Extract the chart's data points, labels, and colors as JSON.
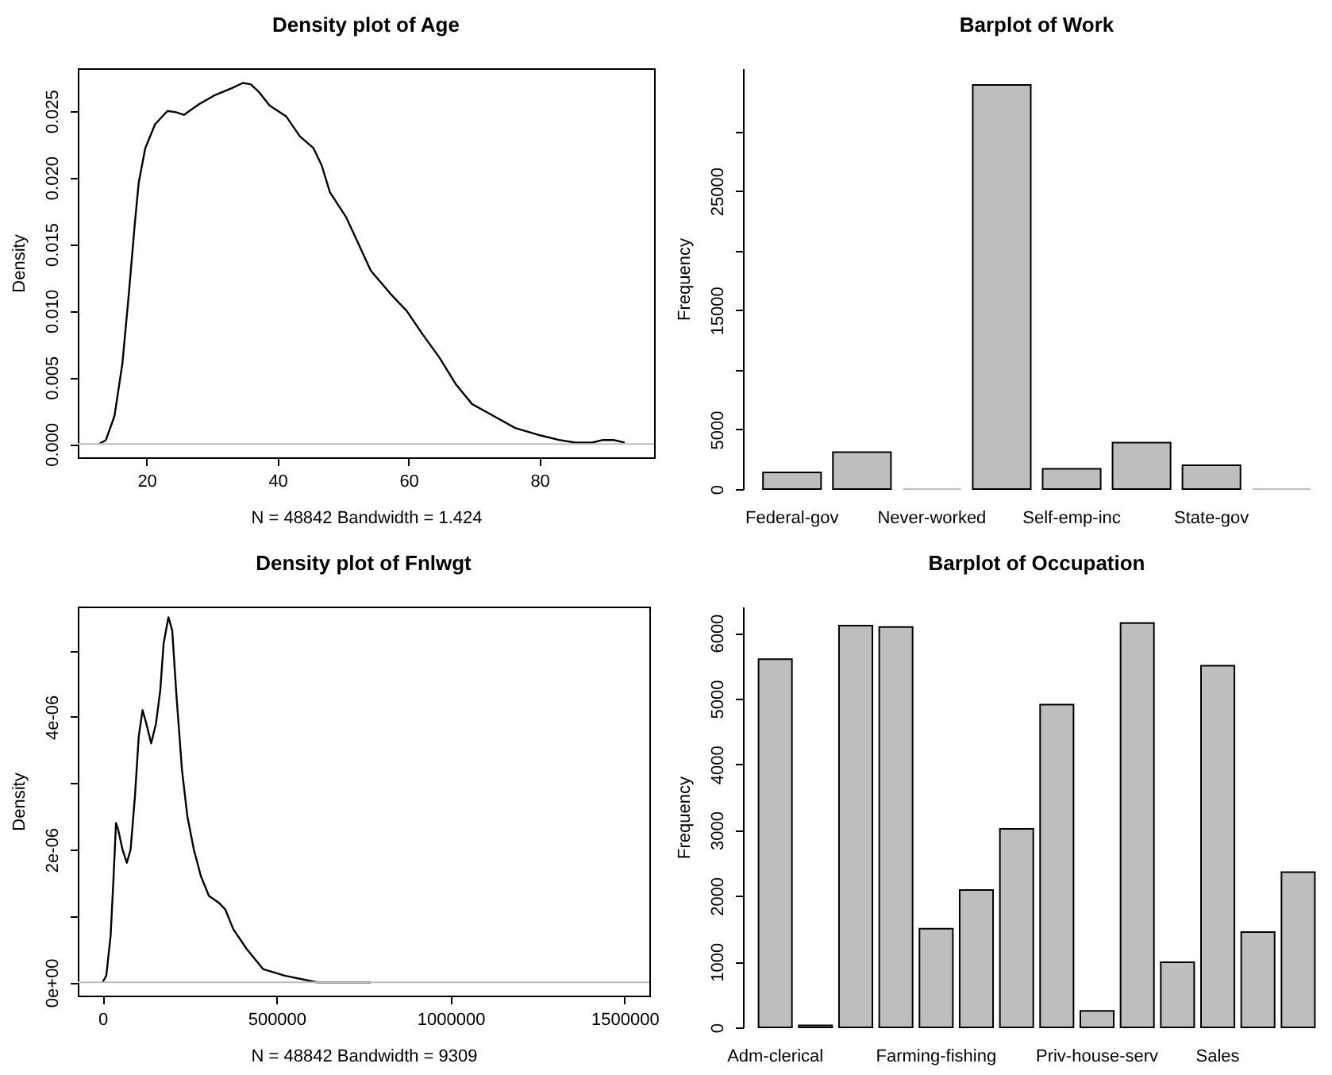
{
  "chart_data": [
    {
      "type": "line",
      "title": "Density plot of Age",
      "xlabel": "N = 48842   Bandwidth = 1.424",
      "ylabel": "Density",
      "x": [
        12.75,
        13.8,
        15.1,
        16.3,
        17.3,
        18.2,
        18.8,
        19.8,
        21.3,
        23.2,
        24.5,
        25.7,
        28,
        30.5,
        33,
        34.7,
        35.9,
        37.2,
        38.8,
        41.3,
        43.4,
        45.5,
        46.75,
        48,
        50.5,
        52.2,
        54.25,
        57.2,
        59.7,
        62.2,
        64.7,
        67.2,
        69.7,
        73,
        76.3,
        79.7,
        83,
        85.5,
        88,
        89.7,
        91.3,
        93
      ],
      "series": [
        {
          "color": "#000000",
          "values": [
            0.0,
            0.0003,
            0.0021,
            0.006,
            0.0113,
            0.0165,
            0.0196,
            0.0222,
            0.024,
            0.025,
            0.0249,
            0.0247,
            0.0255,
            0.0262,
            0.0267,
            0.0271,
            0.027,
            0.0264,
            0.0254,
            0.0246,
            0.0231,
            0.0222,
            0.0209,
            0.0189,
            0.017,
            0.0152,
            0.013,
            0.0113,
            0.01,
            0.0082,
            0.0065,
            0.0045,
            0.003,
            0.0021,
            0.0012,
            0.0007,
            0.0003,
            0.0001,
            0.0001,
            0.0003,
            0.0003,
            0.0001
          ]
        }
      ],
      "xlim": [
        9.5,
        97.5
      ],
      "ylim": [
        -0.001,
        0.0282
      ],
      "xticks": [
        20,
        40,
        60,
        80
      ],
      "yticks": [
        {
          "value": 0,
          "label": "0.000"
        },
        {
          "value": 0.005,
          "label": "0.005"
        },
        {
          "value": 0.01,
          "label": "0.010"
        },
        {
          "value": 0.015,
          "label": "0.015"
        },
        {
          "value": 0.02,
          "label": "0.020"
        },
        {
          "value": 0.025,
          "label": "0.025"
        }
      ],
      "ref_lines": [
        {
          "axis": "y",
          "value": 0,
          "color": "#bebebe"
        }
      ]
    },
    {
      "type": "bar",
      "title": "Barplot of Work",
      "ylabel": "Frequency",
      "categories": [
        "Federal-gov",
        null,
        "Never-worked",
        null,
        "Self-emp-inc",
        null,
        "State-gov",
        null
      ],
      "values": [
        1400,
        3100,
        0,
        33900,
        1700,
        3900,
        2000,
        0
      ],
      "color": "#bebebe",
      "ylim": [
        0,
        35300
      ],
      "yticks": [
        0,
        5000,
        {
          "value": 10000,
          "label": null
        },
        15000,
        {
          "value": 20000,
          "label": null
        },
        25000,
        {
          "value": 30000,
          "label": null
        }
      ]
    },
    {
      "type": "line",
      "title": "Density plot of Fnlwgt",
      "xlabel": "N = 48842   Bandwidth = 9309",
      "ylabel": "Density",
      "x": [
        0,
        10900,
        23300,
        31000,
        38800,
        45000,
        57500,
        69900,
        80700,
        93200,
        104000,
        115000,
        125800,
        139800,
        153700,
        166000,
        175500,
        189400,
        200300,
        212700,
        228300,
        243800,
        262400,
        282600,
        305900,
        333900,
        352500,
        375800,
        414600,
        461200,
        523300,
        616500,
        771700
      ],
      "series": [
        {
          "color": "#000000",
          "values": [
            0,
            1e-07,
            7e-07,
            1.5e-06,
            2.4e-06,
            2.3e-06,
            2e-06,
            1.8e-06,
            2e-06,
            2.8e-06,
            3.7e-06,
            4.1e-06,
            3.9e-06,
            3.6e-06,
            3.9e-06,
            4.4e-06,
            5.1e-06,
            5.5e-06,
            5.3e-06,
            4.3e-06,
            3.2e-06,
            2.5e-06,
            2e-06,
            1.6e-06,
            1.3e-06,
            1.2e-06,
            1.1e-06,
            8e-07,
            5e-07,
            2e-07,
            1e-07,
            0,
            0
          ]
        }
      ],
      "xlim": [
        -71000,
        1571000
      ],
      "ylim": [
        -2e-07,
        5.66e-06
      ],
      "xticks": [
        0,
        500000,
        1000000,
        1500000
      ],
      "yticks": [
        {
          "value": 0,
          "label": "0e+00"
        },
        {
          "value": 1e-06,
          "label": null
        },
        {
          "value": 2e-06,
          "label": "2e-06"
        },
        {
          "value": 3e-06,
          "label": null
        },
        {
          "value": 4e-06,
          "label": "4e-06"
        },
        {
          "value": 5e-06,
          "label": null
        }
      ],
      "ref_lines": [
        {
          "axis": "y",
          "value": 0,
          "color": "#bebebe"
        }
      ]
    },
    {
      "type": "bar",
      "title": "Barplot of Occupation",
      "ylabel": "Frequency",
      "categories": [
        "Adm-clerical",
        null,
        null,
        null,
        "Farming-fishing",
        null,
        null,
        null,
        "Priv-house-serv",
        null,
        null,
        "Sales",
        null,
        null
      ],
      "values": [
        5600,
        30,
        6110,
        6090,
        1500,
        2090,
        3020,
        4910,
        250,
        6150,
        990,
        5500,
        1450,
        2360
      ],
      "color": "#bebebe",
      "ylim": [
        0,
        6400
      ],
      "yticks": [
        0,
        1000,
        2000,
        3000,
        4000,
        5000,
        6000
      ]
    }
  ]
}
